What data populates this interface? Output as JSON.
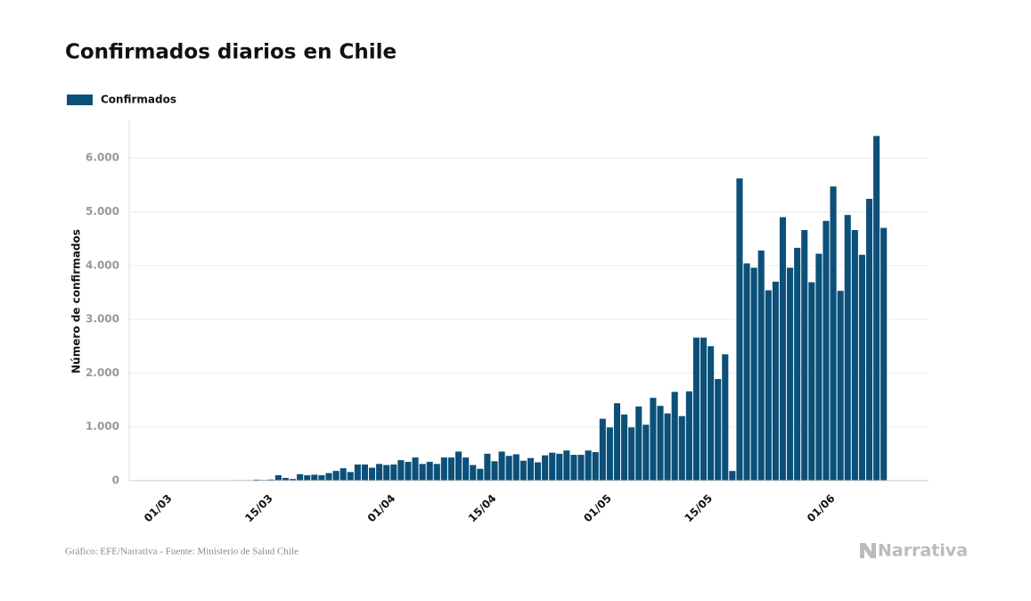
{
  "chart_data": {
    "type": "bar",
    "title": "Confirmados diarios en Chile",
    "y_label": "Número de confirmados",
    "source": "Gráfico: EFE/Narrativa - Fuente: Ministerio de Salud Chile",
    "logo": "Narrativa",
    "categories": [
      "01/03",
      null,
      null,
      null,
      null,
      null,
      null,
      null,
      null,
      null,
      null,
      null,
      null,
      null,
      "15/03",
      null,
      null,
      null,
      null,
      null,
      null,
      null,
      null,
      null,
      null,
      null,
      null,
      null,
      null,
      null,
      null,
      "01/04",
      null,
      null,
      null,
      null,
      null,
      null,
      null,
      null,
      null,
      null,
      null,
      null,
      null,
      "15/04",
      null,
      null,
      null,
      null,
      null,
      null,
      null,
      null,
      null,
      null,
      null,
      null,
      null,
      null,
      null,
      "01/05",
      null,
      null,
      null,
      null,
      null,
      null,
      null,
      null,
      null,
      null,
      null,
      null,
      null,
      "15/05",
      null,
      null,
      null,
      null,
      null,
      null,
      null,
      null,
      null,
      null,
      null,
      null,
      null,
      null,
      null,
      null,
      "01/06",
      null,
      null,
      null,
      null,
      null,
      null,
      null,
      null
    ],
    "series": [
      {
        "name": "Confirmados",
        "color": "#0b5079",
        "values": [
          0,
          0,
          1,
          2,
          1,
          1,
          3,
          3,
          7,
          4,
          10,
          10,
          10,
          18,
          14,
          20,
          100,
          50,
          30,
          120,
          100,
          110,
          100,
          140,
          180,
          230,
          160,
          300,
          300,
          240,
          310,
          290,
          300,
          380,
          350,
          430,
          310,
          350,
          310,
          430,
          430,
          540,
          430,
          290,
          220,
          500,
          360,
          540,
          460,
          490,
          370,
          420,
          340,
          470,
          520,
          500,
          560,
          480,
          480,
          560,
          530,
          1150,
          990,
          1440,
          1230,
          990,
          1380,
          1040,
          1540,
          1390,
          1250,
          1650,
          1200,
          1660,
          2660,
          2660,
          2500,
          1890,
          2350,
          180,
          5620,
          4040,
          3960,
          4280,
          3540,
          3700,
          4900,
          3960,
          4330,
          4660,
          3690,
          4220,
          4830,
          5470,
          3530,
          4940,
          4660,
          4200,
          5240,
          6410,
          4700
        ]
      }
    ],
    "ylim": [
      0,
      6700
    ],
    "yticks": [
      0,
      {
        "value": 1000,
        "label": "1.000"
      },
      {
        "value": 2000,
        "label": "2.000"
      },
      {
        "value": 3000,
        "label": "3.000"
      },
      {
        "value": 4000,
        "label": "4.000"
      },
      {
        "value": 5000,
        "label": "5.000"
      },
      {
        "value": 6000,
        "label": "6.000"
      }
    ],
    "grid": true,
    "legend": "top-left"
  }
}
